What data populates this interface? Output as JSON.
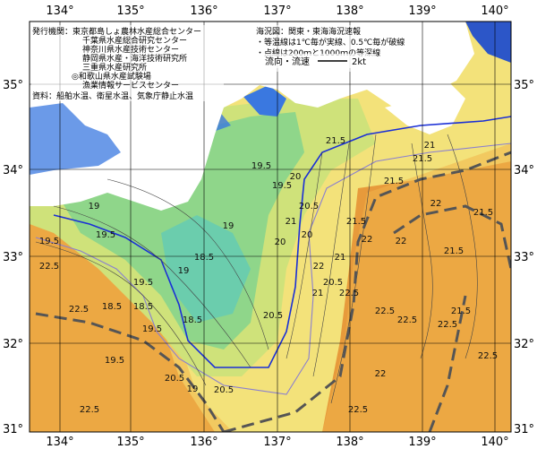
{
  "map": {
    "lon_ticks": [
      "134°",
      "135°",
      "136°",
      "137°",
      "138°",
      "139°",
      "140°"
    ],
    "lat_ticks": [
      "35°",
      "34°",
      "33°",
      "32°",
      "31°"
    ],
    "info_left": [
      "発行機関：東京都島しょ農林水産総合センター",
      "千葉県水産総合研究センター",
      "神奈川県水産技術センター",
      "静岡県水産・海洋技術研究所",
      "三重県水産研究所",
      "◎和歌山県水産試験場",
      "漁業情報サービスセンター",
      "資料：船舶水温、衛星水温、気象庁静止水温"
    ],
    "info_right": [
      "海況図：関東・東海海況速報",
      "・等温線は1℃毎が実線、0.5℃毎が破線",
      "・点線は200ｍと1000ｍの等深線"
    ],
    "legend": {
      "label": "流向・流速",
      "unit": "2kt"
    },
    "isotherm_labels": [
      "19",
      "19.5",
      "19.5",
      "19",
      "18.5",
      "19",
      "19.5",
      "20",
      "20.5",
      "20.5",
      "21",
      "21",
      "21.5",
      "21.5",
      "22",
      "22",
      "22.5",
      "22.5",
      "22.5",
      "22.5",
      "22.5",
      "21.5",
      "21",
      "20.5",
      "19.5",
      "19.5",
      "20",
      "20.5",
      "21.5",
      "21.5",
      "22.5",
      "21.5",
      "22",
      "21.5",
      "19.5",
      "18.5",
      "18.5",
      "20",
      "21",
      "22",
      "22.5",
      "22.5",
      "22",
      "20.5",
      "19",
      "18.5",
      "19.5",
      "22.5"
    ],
    "colors": {
      "warm": "#e79a3b",
      "orange": "#f0b54a",
      "yellow": "#f3e27a",
      "yellowgreen": "#cfe27a",
      "green": "#8fd68a",
      "teal": "#5fc9b8",
      "land": "#ffffff",
      "bay": "#3a78e0",
      "kuroshio_axis": "#555555",
      "contour_blue": "#1a2fd6",
      "depth_purple": "#8a7fd0"
    }
  }
}
